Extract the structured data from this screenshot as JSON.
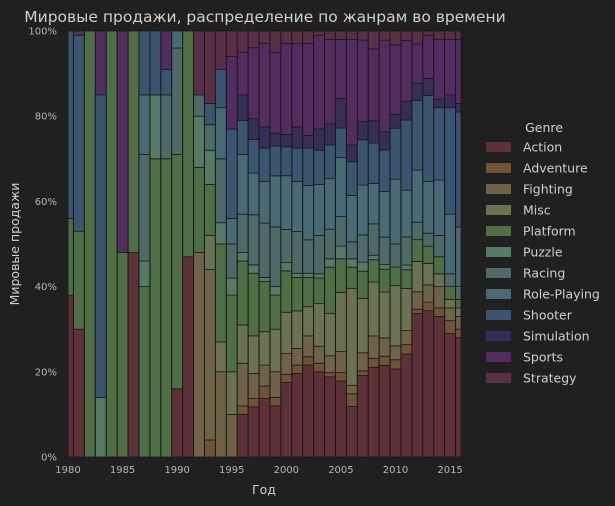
{
  "chart_data": {
    "type": "bar",
    "stacked": "percent",
    "title": "Мировые продажи, распределение по жанрам во времени",
    "xlabel": "Год",
    "ylabel": "Мировые продажи",
    "xlim": [
      1980,
      2016
    ],
    "ylim": [
      0,
      1
    ],
    "xticks": [
      "1980",
      "1985",
      "1990",
      "1995",
      "2000",
      "2005",
      "2010",
      "2015"
    ],
    "yticks": [
      "0%",
      "20%",
      "40%",
      "60%",
      "80%",
      "100%"
    ],
    "legend_title": "Genre",
    "legend_position": "right",
    "categories": [
      1980,
      1981,
      1982,
      1983,
      1984,
      1985,
      1986,
      1987,
      1988,
      1989,
      1990,
      1991,
      1992,
      1993,
      1994,
      1995,
      1996,
      1997,
      1998,
      1999,
      2000,
      2001,
      2002,
      2003,
      2004,
      2005,
      2006,
      2007,
      2008,
      2009,
      2010,
      2011,
      2012,
      2013,
      2014,
      2015,
      2016
    ],
    "series": [
      {
        "name": "Action",
        "color": "#5e3038",
        "values": [
          0.38,
          0.3,
          0,
          0,
          0,
          0,
          0.48,
          0,
          0,
          0,
          0.16,
          0.47,
          0,
          0,
          0,
          0,
          0.1,
          0.12,
          0.14,
          0.12,
          0.18,
          0.2,
          0.22,
          0.2,
          0.19,
          0.18,
          0.12,
          0.18,
          0.2,
          0.2,
          0.19,
          0.22,
          0.33,
          0.34,
          0.33,
          0.29,
          0.28
        ]
      },
      {
        "name": "Adventure",
        "color": "#6e5334",
        "values": [
          0,
          0,
          0,
          0,
          0,
          0,
          0,
          0,
          0,
          0,
          0,
          0,
          0,
          0.04,
          0,
          0,
          0.02,
          0.02,
          0.03,
          0.02,
          0.02,
          0.02,
          0.02,
          0.02,
          0.01,
          0.02,
          0.03,
          0.01,
          0.02,
          0.02,
          0.02,
          0.02,
          0.01,
          0.02,
          0.02,
          0.03,
          0.02
        ]
      },
      {
        "name": "Fighting",
        "color": "#706246",
        "values": [
          0,
          0,
          0,
          0,
          0,
          0,
          0,
          0,
          0,
          0,
          0,
          0,
          0.48,
          0.4,
          0.2,
          0.1,
          0.1,
          0.06,
          0.05,
          0.06,
          0.05,
          0.04,
          0.05,
          0.04,
          0.04,
          0.05,
          0.02,
          0.04,
          0.05,
          0.04,
          0.03,
          0.03,
          0.04,
          0.04,
          0.05,
          0.03,
          0.03
        ]
      },
      {
        "name": "Misc",
        "color": "#6b7251",
        "values": [
          0,
          0,
          0,
          0,
          0,
          0,
          0,
          0,
          0,
          0,
          0,
          0,
          0,
          0.08,
          0.07,
          0.1,
          0.09,
          0.09,
          0.08,
          0.1,
          0.1,
          0.09,
          0.07,
          0.1,
          0.1,
          0.14,
          0.23,
          0.12,
          0.12,
          0.1,
          0.13,
          0.09,
          0.07,
          0.05,
          0.03,
          0.02,
          0.02
        ]
      },
      {
        "name": "Platform",
        "color": "#4e6e43",
        "values": [
          0.18,
          0.23,
          1.0,
          0,
          1.0,
          0.48,
          0.52,
          0.4,
          0.7,
          0.7,
          0.55,
          0.53,
          0.2,
          0.12,
          0.23,
          0.18,
          0.15,
          0.15,
          0.12,
          0.08,
          0.1,
          0.08,
          0.07,
          0.06,
          0.11,
          0.08,
          0.05,
          0.06,
          0.05,
          0.05,
          0.04,
          0.04,
          0.05,
          0.04,
          0.04,
          0.03,
          0.02
        ]
      },
      {
        "name": "Puzzle",
        "color": "#557a66",
        "values": [
          0,
          0,
          0,
          0.14,
          0,
          0,
          0,
          0.06,
          0.15,
          0,
          0,
          0,
          0.12,
          0.08,
          0.05,
          0.04,
          0.02,
          0.02,
          0.01,
          0.02,
          0.02,
          0.01,
          0.01,
          0.01,
          0.02,
          0.03,
          0.02,
          0.02,
          0.01,
          0.01,
          0,
          0.01,
          0,
          0,
          0,
          0,
          0
        ]
      },
      {
        "name": "Racing",
        "color": "#4d6a69",
        "values": [
          0,
          0,
          0,
          0,
          0,
          0,
          0,
          0.25,
          0,
          0.15,
          0.25,
          0,
          0.05,
          0.06,
          0.15,
          0.08,
          0.09,
          0.12,
          0.13,
          0.14,
          0.08,
          0.1,
          0.08,
          0.09,
          0.07,
          0.07,
          0.04,
          0.06,
          0.07,
          0.06,
          0.05,
          0.06,
          0.04,
          0.03,
          0.05,
          0.03,
          0.03
        ]
      },
      {
        "name": "Role-Playing",
        "color": "#486a74",
        "values": [
          0,
          0,
          0,
          0,
          0,
          0,
          0,
          0.14,
          0,
          0,
          0.04,
          0,
          0,
          0,
          0.12,
          0.06,
          0.14,
          0.1,
          0.1,
          0.12,
          0.13,
          0.12,
          0.13,
          0.12,
          0.12,
          0.14,
          0.11,
          0.11,
          0.09,
          0.1,
          0.14,
          0.1,
          0.12,
          0.12,
          0.13,
          0.14,
          0.14
        ]
      },
      {
        "name": "Shooter",
        "color": "#3a5570",
        "values": [
          0.44,
          0.46,
          0,
          0.71,
          0,
          0,
          0,
          0.15,
          0.15,
          0.06,
          0,
          0,
          0,
          0.05,
          0.09,
          0.21,
          0.08,
          0.08,
          0.08,
          0.07,
          0.07,
          0.08,
          0.09,
          0.08,
          0.08,
          0.07,
          0.08,
          0.1,
          0.09,
          0.09,
          0.11,
          0.15,
          0.16,
          0.2,
          0.17,
          0.25,
          0.27
        ]
      },
      {
        "name": "Simulation",
        "color": "#362e55",
        "values": [
          0,
          0,
          0,
          0,
          0,
          0,
          0,
          0,
          0,
          0,
          0,
          0,
          0,
          0,
          0,
          0,
          0.06,
          0.05,
          0.05,
          0.03,
          0.03,
          0.05,
          0.03,
          0.05,
          0.05,
          0.07,
          0.04,
          0.04,
          0.05,
          0.04,
          0.03,
          0.04,
          0.04,
          0.04,
          0.02,
          0.03,
          0.02
        ]
      },
      {
        "name": "Sports",
        "color": "#532d60",
        "values": [
          0,
          0,
          0,
          0.15,
          0,
          0.52,
          0,
          0,
          0,
          0.09,
          0,
          0,
          0,
          0,
          0,
          0.17,
          0.1,
          0.17,
          0.2,
          0.19,
          0.22,
          0.2,
          0.22,
          0.22,
          0.2,
          0.14,
          0.25,
          0.18,
          0.16,
          0.2,
          0.15,
          0.13,
          0.09,
          0.1,
          0.14,
          0.13,
          0.15
        ]
      },
      {
        "name": "Strategy",
        "color": "#5a3046",
        "values": [
          0,
          0.01,
          0,
          0,
          0,
          0,
          0,
          0,
          0,
          0,
          0,
          0,
          0.15,
          0.17,
          0.09,
          0.06,
          0.05,
          0.04,
          0.03,
          0.05,
          0.03,
          0.03,
          0.03,
          0.01,
          0.02,
          0.02,
          0.02,
          0.02,
          0.04,
          0.02,
          0.03,
          0.02,
          0.03,
          0.01,
          0.02,
          0.02,
          0.02
        ]
      }
    ]
  }
}
